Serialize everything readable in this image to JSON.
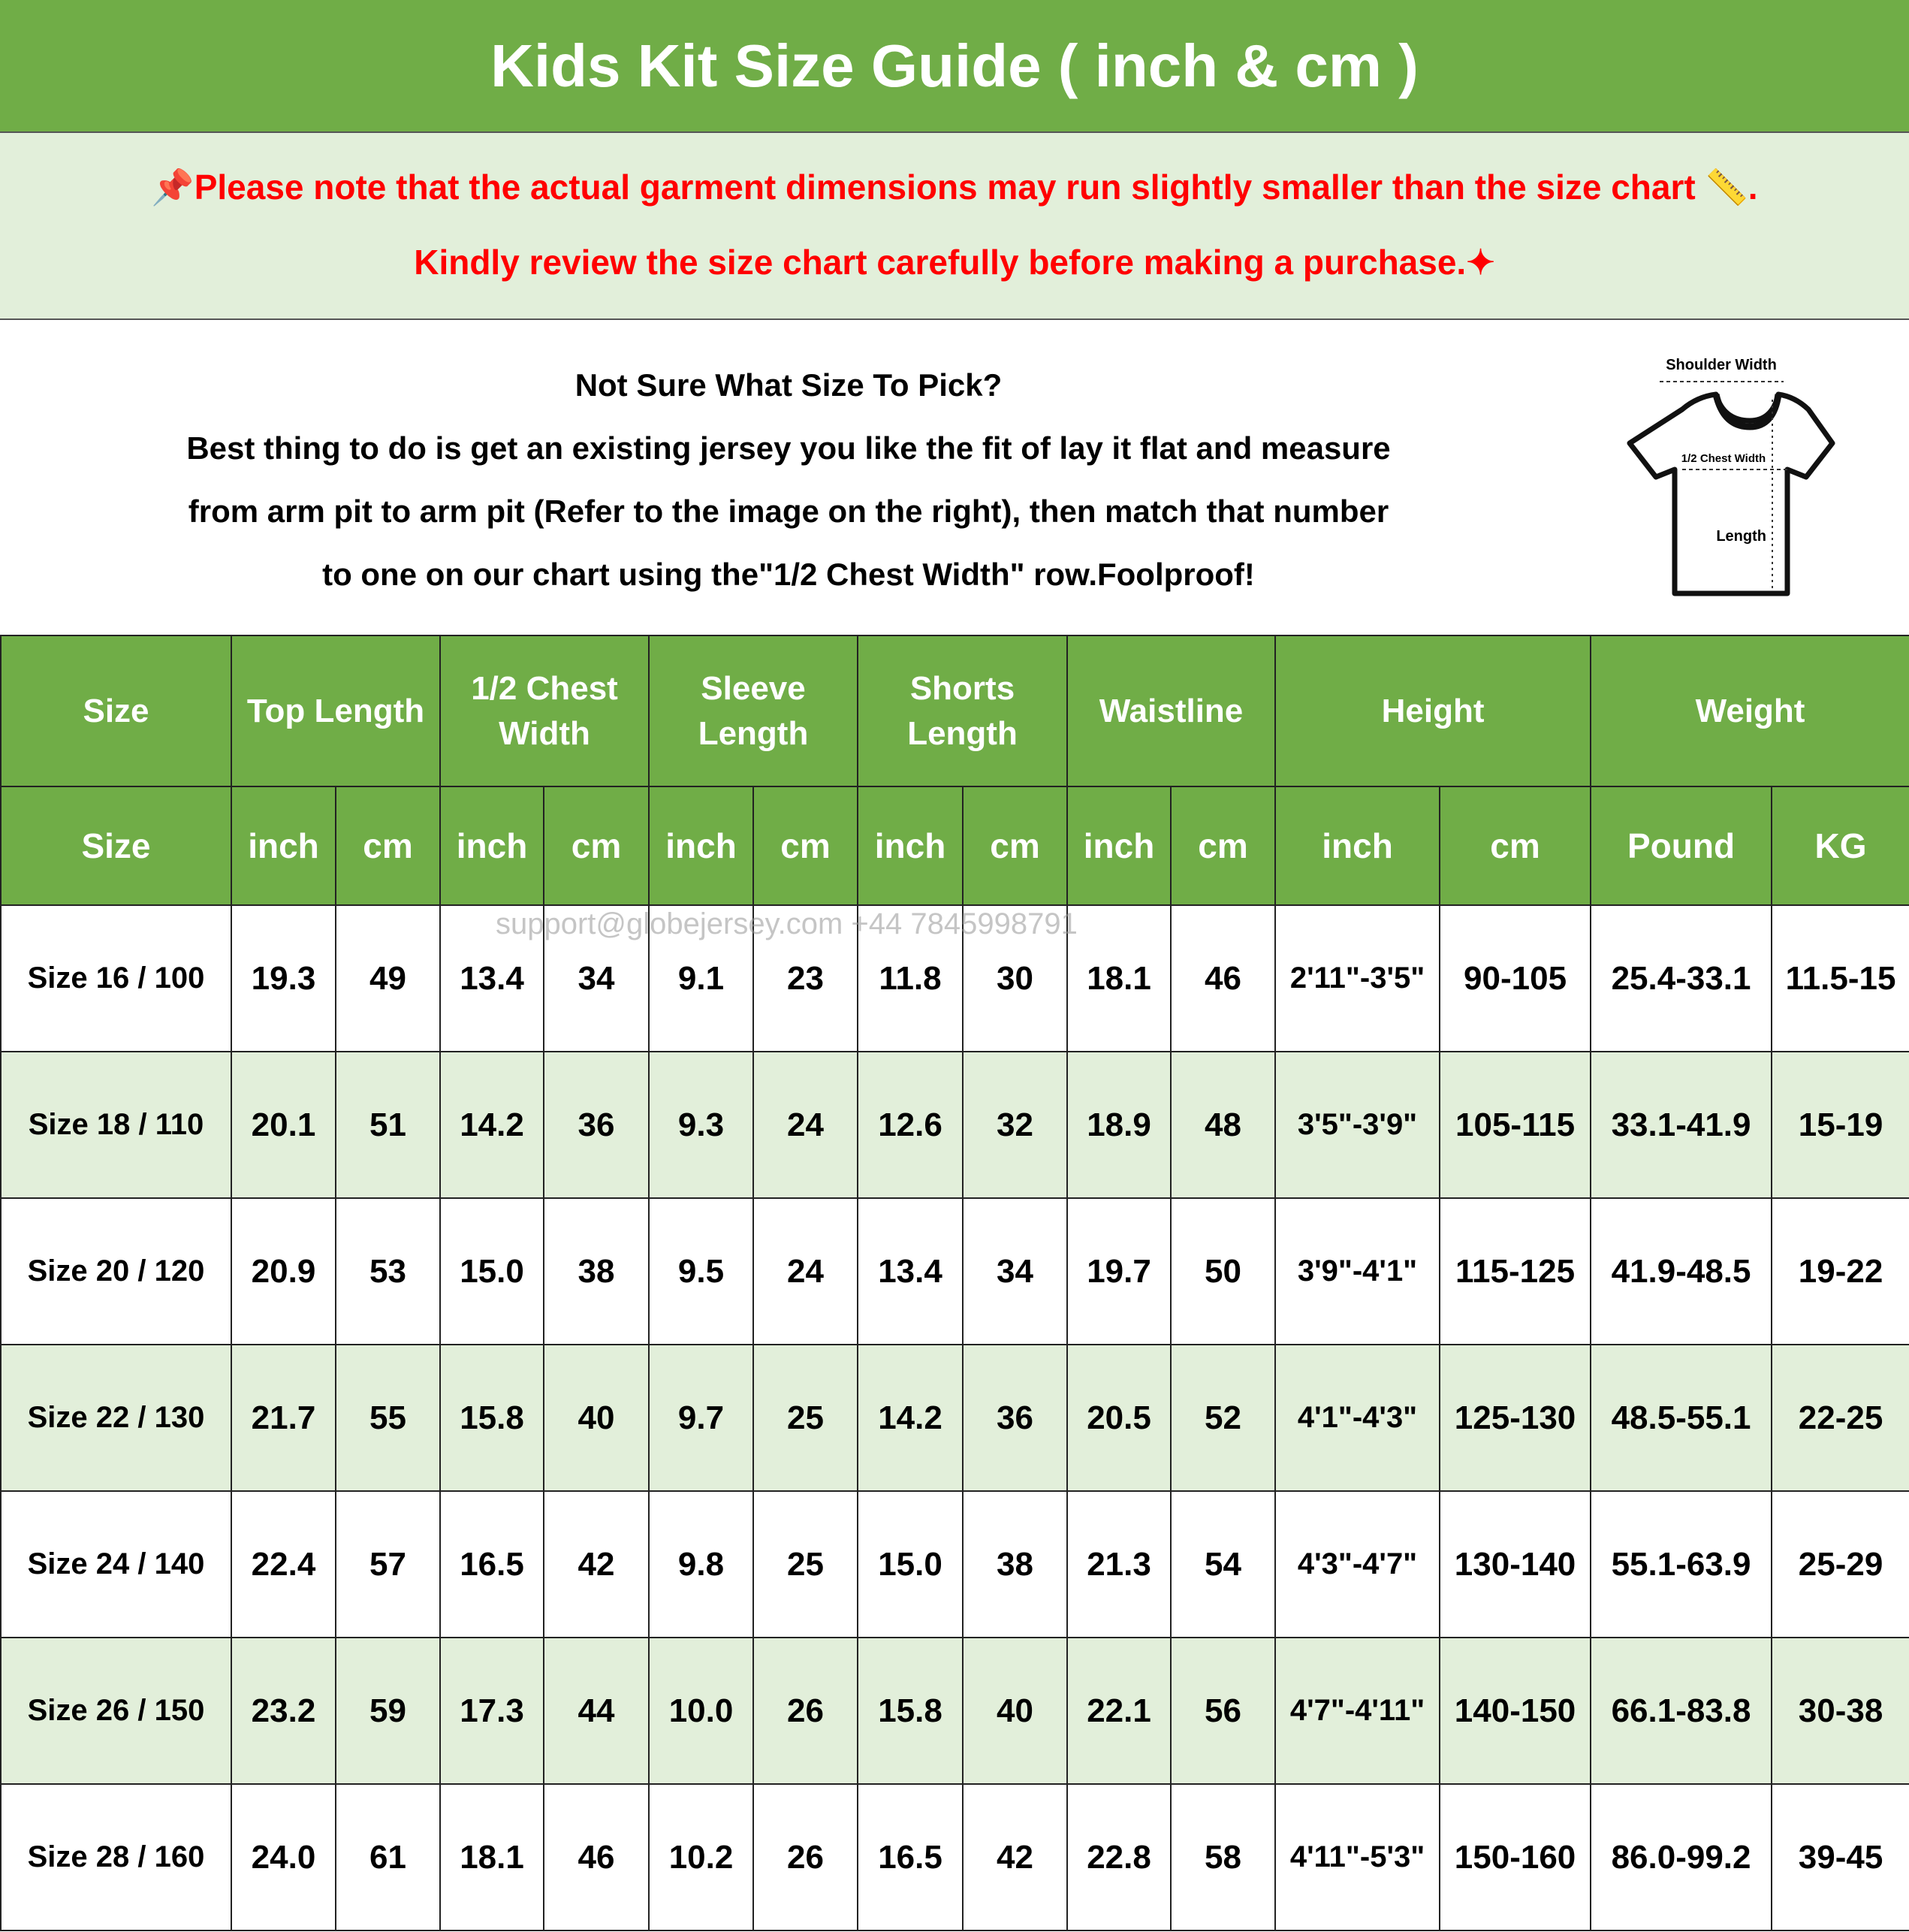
{
  "title": "Kids Kit Size Guide ( inch & cm )",
  "note": {
    "line1": "Please note that the actual garment dimensions may run slightly smaller than the size chart",
    "line1_end": ".",
    "line2": "Kindly review the size chart carefully before making a purchase.",
    "pin_icon": "pushpin-icon",
    "ruler_icon": "ruler-icon",
    "sparkle_icon": "sparkles-icon"
  },
  "info": {
    "heading": "Not Sure What Size To Pick?",
    "body1": "Best thing to do is get an existing jersey you like the fit of lay it flat and measure",
    "body2": "from arm pit to arm pit (Refer to the image on the right), then match that number",
    "body3": "to one on our chart using the\"1/2 Chest Width\" row.Foolproof!",
    "diagram": {
      "shoulder": "Shoulder Width",
      "chest": "1/2 Chest Width",
      "length": "Length"
    }
  },
  "watermark": "support@globejersey.com  +44 7845998791",
  "colors": {
    "header_green": "#70AD47",
    "row_alt": "#E2EFDA",
    "note_red": "#FF0000"
  },
  "table": {
    "groups": [
      "Size",
      "Top Length",
      "1/2 Chest Width",
      "Sleeve Length",
      "Shorts Length",
      "Waistline",
      "Height",
      "Weight"
    ],
    "subheaders": [
      "Size",
      "inch",
      "cm",
      "inch",
      "cm",
      "inch",
      "cm",
      "inch",
      "cm",
      "inch",
      "cm",
      "inch",
      "cm",
      "Pound",
      "KG"
    ],
    "rows": [
      [
        "Size 16 / 100",
        "19.3",
        "49",
        "13.4",
        "34",
        "9.1",
        "23",
        "11.8",
        "30",
        "18.1",
        "46",
        "2'11\"-3'5\"",
        "90-105",
        "25.4-33.1",
        "11.5-15"
      ],
      [
        "Size 18 / 110",
        "20.1",
        "51",
        "14.2",
        "36",
        "9.3",
        "24",
        "12.6",
        "32",
        "18.9",
        "48",
        "3'5\"-3'9\"",
        "105-115",
        "33.1-41.9",
        "15-19"
      ],
      [
        "Size 20 / 120",
        "20.9",
        "53",
        "15.0",
        "38",
        "9.5",
        "24",
        "13.4",
        "34",
        "19.7",
        "50",
        "3'9\"-4'1\"",
        "115-125",
        "41.9-48.5",
        "19-22"
      ],
      [
        "Size 22 / 130",
        "21.7",
        "55",
        "15.8",
        "40",
        "9.7",
        "25",
        "14.2",
        "36",
        "20.5",
        "52",
        "4'1\"-4'3\"",
        "125-130",
        "48.5-55.1",
        "22-25"
      ],
      [
        "Size 24 / 140",
        "22.4",
        "57",
        "16.5",
        "42",
        "9.8",
        "25",
        "15.0",
        "38",
        "21.3",
        "54",
        "4'3\"-4'7\"",
        "130-140",
        "55.1-63.9",
        "25-29"
      ],
      [
        "Size 26 / 150",
        "23.2",
        "59",
        "17.3",
        "44",
        "10.0",
        "26",
        "15.8",
        "40",
        "22.1",
        "56",
        "4'7\"-4'11\"",
        "140-150",
        "66.1-83.8",
        "30-38"
      ],
      [
        "Size 28 / 160",
        "24.0",
        "61",
        "18.1",
        "46",
        "10.2",
        "26",
        "16.5",
        "42",
        "22.8",
        "58",
        "4'11\"-5'3\"",
        "150-160",
        "86.0-99.2",
        "39-45"
      ]
    ]
  }
}
